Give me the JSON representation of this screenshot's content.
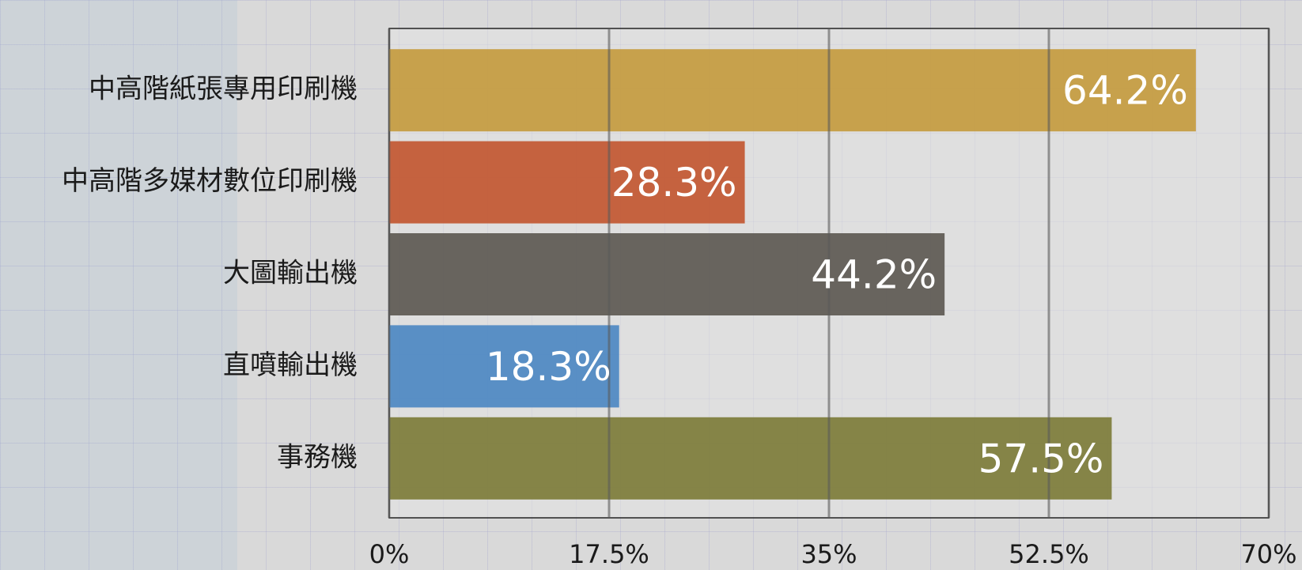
{
  "chart_data": {
    "type": "bar",
    "orientation": "horizontal",
    "categories": [
      "中高階紙張專用印刷機",
      "中高階多媒材數位印刷機",
      "大圖輸出機",
      "直噴輸出機",
      "事務機"
    ],
    "values": [
      64.2,
      28.3,
      44.2,
      18.3,
      57.5
    ],
    "value_labels": [
      "64.2%",
      "28.3%",
      "44.2%",
      "18.3%",
      "57.5%"
    ],
    "colors": [
      "#c49a3c",
      "#c2542e",
      "#5b5650",
      "#4a86c2",
      "#7b7a36"
    ],
    "xlim": [
      0,
      70
    ],
    "xticks": [
      {
        "value": 0,
        "label": "0%"
      },
      {
        "value": 17.5,
        "label": "17.5%"
      },
      {
        "value": 35,
        "label": "35%"
      },
      {
        "value": 52.5,
        "label": "52.5%"
      },
      {
        "value": 70,
        "label": "70%"
      }
    ],
    "grid": true
  }
}
